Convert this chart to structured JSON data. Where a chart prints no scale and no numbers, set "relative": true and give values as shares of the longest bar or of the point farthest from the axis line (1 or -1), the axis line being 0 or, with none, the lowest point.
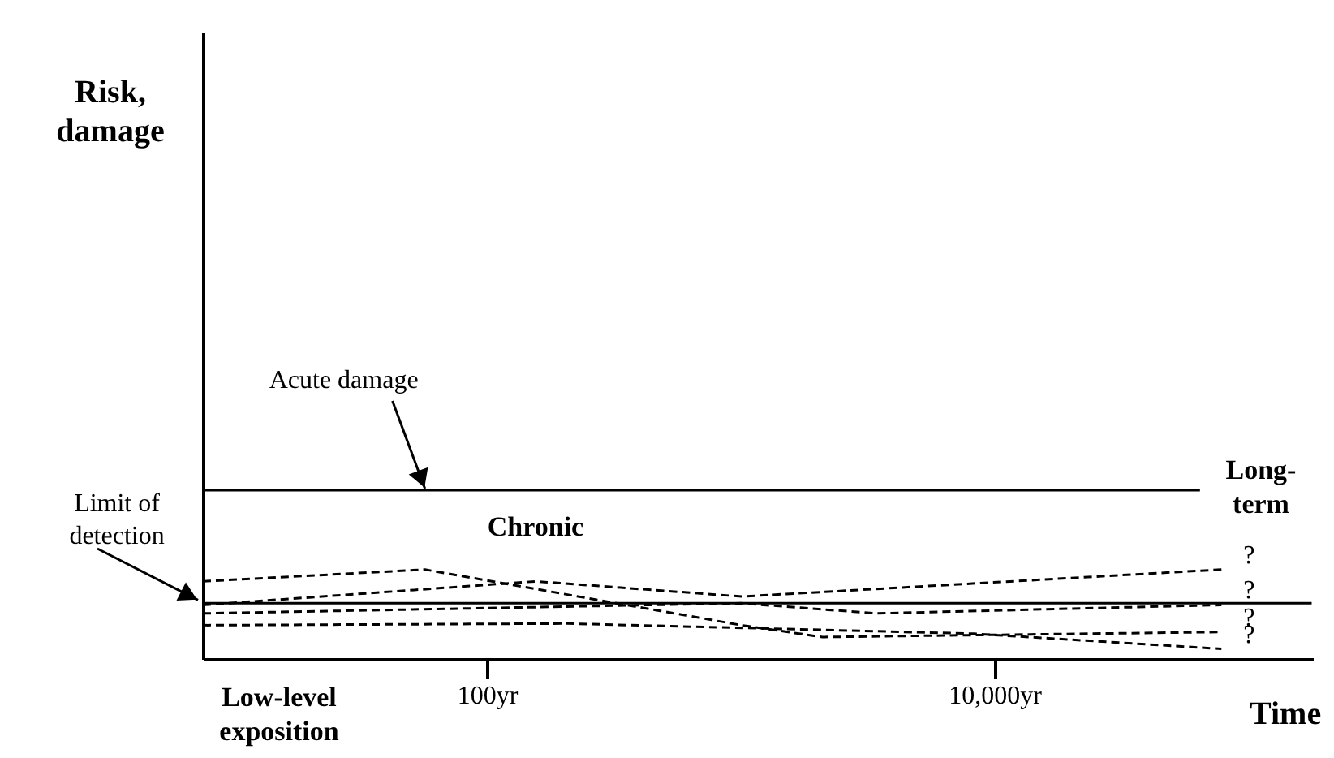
{
  "chart_data": {
    "type": "line",
    "relative": true,
    "xlabel": "Time",
    "log": "x",
    "xlim": [
      7.6,
      180000
    ],
    "xticks": [
      {
        "value": 100,
        "label": "100yr"
      },
      {
        "value": 10000,
        "label": "10,000yr"
      }
    ],
    "grid": false,
    "series": [
      {
        "color": "#000000",
        "line_style": "solid",
        "x": [
          7.6,
          64600
        ],
        "values": [
          1,
          1
        ]
      },
      {
        "color": "#000000",
        "line_style": "solid",
        "x": [
          7.6,
          178000
        ],
        "values": [
          0.33,
          0.33
        ]
      },
      {
        "color": "#000000",
        "line_style": "dashed",
        "x": [
          7.6,
          57,
          1010,
          2100,
          78500
        ],
        "values": [
          0.46,
          0.53,
          0.2,
          0.13,
          0.16
        ]
      },
      {
        "color": "#000000",
        "line_style": "dashed",
        "x": [
          7.6,
          156,
          1010,
          78500
        ],
        "values": [
          0.32,
          0.46,
          0.37,
          0.53
        ]
      },
      {
        "color": "#000000",
        "line_style": "dashed",
        "x": [
          7.6,
          1010,
          3420,
          78500
        ],
        "values": [
          0.27,
          0.33,
          0.27,
          0.32
        ]
      },
      {
        "color": "#000000",
        "line_style": "dashed",
        "x": [
          7.6,
          208,
          8260,
          78500
        ],
        "values": [
          0.2,
          0.21,
          0.15,
          0.06
        ]
      }
    ],
    "annotations": [
      {
        "text": "Acute damage",
        "x": 57,
        "y": 1
      },
      {
        "text": "Limit of detection",
        "x": 7.6,
        "y": 0.33
      },
      "Chronic",
      "Long-term",
      "Low-level exposition",
      "Risk, damage",
      {
        "text": "?",
        "x": 78500,
        "y": 0.53
      },
      {
        "text": "?",
        "x": 78500,
        "y": 0.32
      },
      {
        "text": "?",
        "x": 78500,
        "y": 0.16
      },
      {
        "text": "?",
        "x": 78500,
        "y": 0.06
      }
    ]
  }
}
